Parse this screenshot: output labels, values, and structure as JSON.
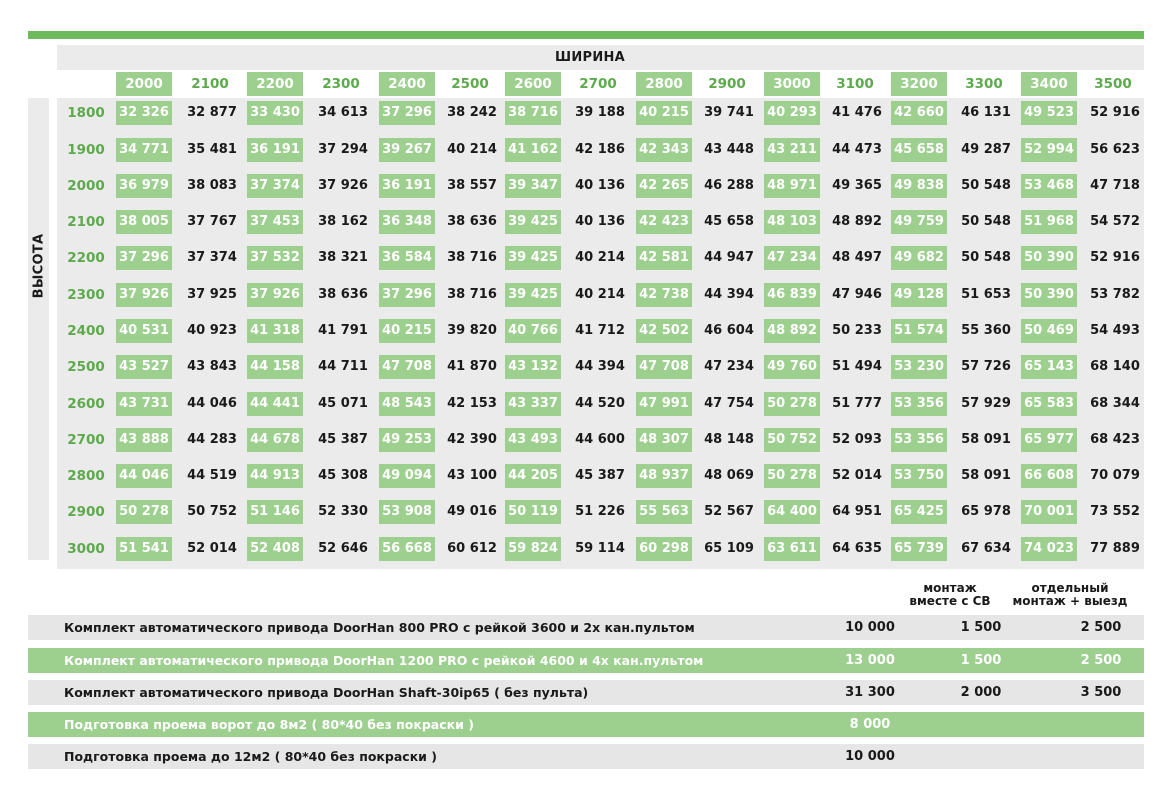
{
  "table": {
    "width_label": "ШИРИНА",
    "height_label": "ВЫСОТА",
    "widths": [
      "2000",
      "2100",
      "2200",
      "2300",
      "2400",
      "2500",
      "2600",
      "2700",
      "2800",
      "2900",
      "3000",
      "3100",
      "3200",
      "3300",
      "3400",
      "3500"
    ],
    "heights": [
      "1800",
      "1900",
      "2000",
      "2100",
      "2200",
      "2300",
      "2400",
      "2500",
      "2600",
      "2700",
      "2800",
      "2900",
      "3000"
    ],
    "rows": [
      [
        "32 326",
        "32 877",
        "33 430",
        "34 613",
        "37 296",
        "38 242",
        "38 716",
        "39 188",
        "40 215",
        "39 741",
        "40 293",
        "41 476",
        "42 660",
        "46 131",
        "49 523",
        "52 916"
      ],
      [
        "34 771",
        "35 481",
        "36 191",
        "37 294",
        "39 267",
        "40 214",
        "41 162",
        "42 186",
        "42 343",
        "43 448",
        "43 211",
        "44 473",
        "45 658",
        "49 287",
        "52 994",
        "56 623"
      ],
      [
        "36 979",
        "38 083",
        "37 374",
        "37 926",
        "36 191",
        "38 557",
        "39 347",
        "40 136",
        "42 265",
        "46 288",
        "48 971",
        "49 365",
        "49 838",
        "50 548",
        "53 468",
        "47 718"
      ],
      [
        "38 005",
        "37 767",
        "37 453",
        "38 162",
        "36 348",
        "38 636",
        "39 425",
        "40 136",
        "42 423",
        "45 658",
        "48 103",
        "48 892",
        "49 759",
        "50 548",
        "51 968",
        "54 572"
      ],
      [
        "37 296",
        "37 374",
        "37 532",
        "38 321",
        "36 584",
        "38 716",
        "39 425",
        "40 214",
        "42 581",
        "44 947",
        "47 234",
        "48 497",
        "49 682",
        "50 548",
        "50 390",
        "52 916"
      ],
      [
        "37 926",
        "37 925",
        "37 926",
        "38 636",
        "37 296",
        "38 716",
        "39 425",
        "40 214",
        "42 738",
        "44 394",
        "46 839",
        "47 946",
        "49 128",
        "51 653",
        "50 390",
        "53 782"
      ],
      [
        "40 531",
        "40 923",
        "41 318",
        "41 791",
        "40 215",
        "39 820",
        "40 766",
        "41 712",
        "42 502",
        "46 604",
        "48 892",
        "50 233",
        "51 574",
        "55 360",
        "50 469",
        "54 493"
      ],
      [
        "43 527",
        "43 843",
        "44 158",
        "44 711",
        "47 708",
        "41 870",
        "43 132",
        "44 394",
        "47 708",
        "47  234",
        "49 760",
        "51 494",
        "53 230",
        "57 726",
        "65 143",
        "68 140"
      ],
      [
        "43 731",
        "44 046",
        "44 441",
        "45 071",
        "48 543",
        "42 153",
        "43 337",
        "44 520",
        "47 991",
        "47 754",
        "50 278",
        "51 777",
        "53 356",
        "57 929",
        "65 583",
        "68 344"
      ],
      [
        "43 888",
        "44 283",
        "44 678",
        "45 387",
        "49 253",
        "42 390",
        "43 493",
        "44 600",
        "48 307",
        "48 148",
        "50 752",
        "52 093",
        "53 356",
        "58 091",
        "65 977",
        "68 423"
      ],
      [
        "44 046",
        "44 519",
        "44 913",
        "45 308",
        "49 094",
        "43 100",
        "44 205",
        "45 387",
        "48 937",
        "48 069",
        "50 278",
        "52 014",
        "53 750",
        "58 091",
        "66 608",
        "70 079"
      ],
      [
        "50 278",
        "50 752",
        "51 146",
        "52 330",
        "53 908",
        "49 016",
        "50 119",
        "51 226",
        "55 563",
        "52 567",
        "64 400",
        "64 951",
        "65 425",
        "65 978",
        "70 001",
        "73 552"
      ],
      [
        "51 541",
        "52 014",
        "52 408",
        "52 646",
        "56 668",
        "60 612",
        "59 824",
        "59 114",
        "60 298",
        "65 109",
        "63 611",
        "64 635",
        "65 739",
        "67 634",
        "74 023",
        "77 889"
      ]
    ]
  },
  "services": {
    "col_headers": {
      "col2_line1": "монтаж",
      "col2_line2": "вместе с СВ",
      "col3_line1": "отдельный",
      "col3_line2": "монтаж + выезд"
    },
    "rows": [
      {
        "name": "Комплект автоматического привода DoorHan 800 PRO с рейкой 3600 и 2х кан.пультом",
        "price": "10 000",
        "mount_with": "1 500",
        "mount_separate": "2 500"
      },
      {
        "name": "Комплект автоматического привода DoorHan 1200 PRO с рейкой 4600 и 4х кан.пультом",
        "price": "13 000",
        "mount_with": "1 500",
        "mount_separate": "2 500"
      },
      {
        "name": "Комплект автоматического привода DoorHan Shaft-30ip65 ( без пульта)",
        "price": "31 300",
        "mount_with": "2 000",
        "mount_separate": "3 500"
      },
      {
        "name": "Подготовка проема ворот до 8м2 ( 80*40 без покраски )",
        "price": "8 000",
        "mount_with": "",
        "mount_separate": ""
      },
      {
        "name": "Подготовка проема до 12м2 ( 80*40 без покраски )",
        "price": "10 000",
        "mount_with": "",
        "mount_separate": ""
      }
    ]
  },
  "colors": {
    "accent_green": "#6dbb5d",
    "highlight_green": "#9dcf8f",
    "header_green_text": "#5daa4c",
    "row_gray": "#e6e6e6"
  }
}
